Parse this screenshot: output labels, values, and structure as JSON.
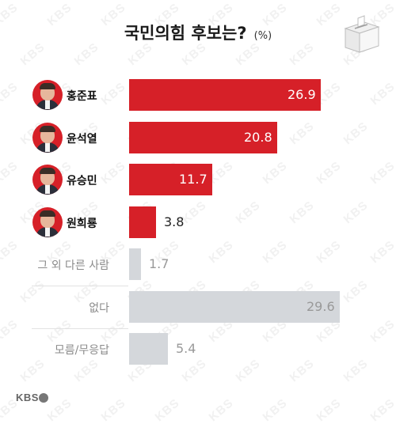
{
  "header": {
    "title": "국민의힘 후보는?",
    "unit": "(%)"
  },
  "chart_data": {
    "type": "bar",
    "orientation": "horizontal",
    "title": "국민의힘 후보는?",
    "unit": "(%)",
    "categories": [
      "홍준표",
      "윤석열",
      "유승민",
      "원희룡",
      "그 외 다른 사람",
      "없다",
      "모름/무응답"
    ],
    "values": [
      26.9,
      20.8,
      11.7,
      3.8,
      1.7,
      29.6,
      5.4
    ],
    "highlighted": [
      true,
      true,
      true,
      true,
      false,
      false,
      false
    ],
    "has_photo": [
      true,
      true,
      true,
      true,
      false,
      false,
      false
    ],
    "colors": {
      "highlight": "#d62028",
      "muted": "#d4d7db",
      "label_on_bar": "#ffffff",
      "label_dark": "#222222",
      "label_muted": "#999999"
    },
    "xlim": [
      0,
      30
    ]
  },
  "footer": {
    "logo": "KBS"
  }
}
